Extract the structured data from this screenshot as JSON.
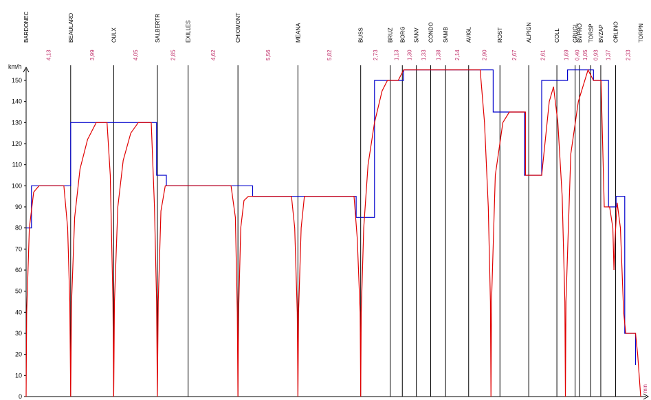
{
  "chart_data": {
    "type": "line",
    "ylabel": "km/h",
    "xlabel": "min",
    "ylim": [
      0,
      155
    ],
    "yticks": [
      0,
      10,
      20,
      30,
      40,
      50,
      60,
      70,
      80,
      90,
      100,
      110,
      120,
      130,
      140,
      150
    ],
    "stations": [
      {
        "name": "BARDONEC",
        "km": 0
      },
      {
        "name": "BEAULARD",
        "km": 4.13
      },
      {
        "name": "OULX",
        "km": 8.12
      },
      {
        "name": "SALBERTR",
        "km": 12.17
      },
      {
        "name": "EXILLES",
        "km": 15.02
      },
      {
        "name": "CHIOMONT",
        "km": 19.64
      },
      {
        "name": "MEANA",
        "km": 25.2
      },
      {
        "name": "BUSS",
        "km": 31.02
      },
      {
        "name": "BRUZ",
        "km": 33.75
      },
      {
        "name": "BORG",
        "km": 34.88
      },
      {
        "name": "SANV",
        "km": 36.18
      },
      {
        "name": "CONDO",
        "km": 37.51
      },
      {
        "name": "SAMB",
        "km": 38.89
      },
      {
        "name": "AVIGL",
        "km": 41.03
      },
      {
        "name": "ROST",
        "km": 43.93
      },
      {
        "name": "ALPIGN",
        "km": 46.6
      },
      {
        "name": "COLL",
        "km": 49.21
      },
      {
        "name": "GRUGL",
        "km": 50.9
      },
      {
        "name": "BVPRO",
        "km": 51.3
      },
      {
        "name": "TORSP",
        "km": 52.35
      },
      {
        "name": "BVZAP",
        "km": 53.28
      },
      {
        "name": "ORLINO",
        "km": 54.65
      },
      {
        "name": "TORPN",
        "km": 56.98
      }
    ],
    "segment_labels": [
      "4,13",
      "3,99",
      "4,05",
      "2,85",
      "4,62",
      "5,56",
      "5,82",
      "2,73",
      "1,13",
      "1,30",
      "1,33",
      "1,38",
      "2,14",
      "2,90",
      "2,67",
      "2,61",
      "1,69",
      "0,40",
      "1,05",
      "0,93",
      "1,37",
      "2,33"
    ],
    "series": [
      {
        "name": "",
        "color": "#0000cc",
        "points": [
          [
            0,
            80
          ],
          [
            0.5,
            80
          ],
          [
            0.5,
            100
          ],
          [
            4.13,
            100
          ],
          [
            4.13,
            130
          ],
          [
            12.1,
            130
          ],
          [
            12.1,
            105
          ],
          [
            13,
            105
          ],
          [
            13,
            100
          ],
          [
            21,
            100
          ],
          [
            21,
            95
          ],
          [
            30.6,
            95
          ],
          [
            30.6,
            85
          ],
          [
            32.3,
            85
          ],
          [
            32.3,
            150
          ],
          [
            35,
            150
          ],
          [
            35,
            155
          ],
          [
            43.3,
            155
          ],
          [
            43.3,
            135
          ],
          [
            46.2,
            135
          ],
          [
            46.2,
            105
          ],
          [
            47.8,
            105
          ],
          [
            47.8,
            150
          ],
          [
            50.2,
            150
          ],
          [
            50.2,
            155
          ],
          [
            52.6,
            155
          ],
          [
            52.6,
            150
          ],
          [
            54,
            150
          ],
          [
            54,
            90
          ],
          [
            54.7,
            90
          ],
          [
            54.7,
            95
          ],
          [
            55.5,
            95
          ],
          [
            55.5,
            30
          ],
          [
            56.5,
            30
          ],
          [
            56.5,
            15
          ]
        ]
      },
      {
        "name": "",
        "color": "#e00000",
        "points": [
          [
            0,
            0
          ],
          [
            0.05,
            40
          ],
          [
            0.3,
            80
          ],
          [
            0.7,
            97
          ],
          [
            1.2,
            100
          ],
          [
            3.5,
            100
          ],
          [
            3.85,
            80
          ],
          [
            4.05,
            45
          ],
          [
            4.13,
            0
          ],
          [
            4.21,
            45
          ],
          [
            4.5,
            85
          ],
          [
            5,
            108
          ],
          [
            5.7,
            122
          ],
          [
            6.5,
            130
          ],
          [
            7.5,
            130
          ],
          [
            7.8,
            105
          ],
          [
            8.05,
            45
          ],
          [
            8.12,
            0
          ],
          [
            8.19,
            45
          ],
          [
            8.5,
            90
          ],
          [
            9,
            112
          ],
          [
            9.7,
            125
          ],
          [
            10.4,
            130
          ],
          [
            11.6,
            130
          ],
          [
            11.9,
            90
          ],
          [
            12.1,
            45
          ],
          [
            12.17,
            0
          ],
          [
            12.25,
            45
          ],
          [
            12.5,
            88
          ],
          [
            12.9,
            100
          ],
          [
            19,
            100
          ],
          [
            19.4,
            85
          ],
          [
            19.58,
            40
          ],
          [
            19.64,
            0
          ],
          [
            19.7,
            40
          ],
          [
            19.9,
            80
          ],
          [
            20.2,
            93
          ],
          [
            20.6,
            95
          ],
          [
            24.6,
            95
          ],
          [
            24.9,
            80
          ],
          [
            25.14,
            40
          ],
          [
            25.2,
            0
          ],
          [
            25.26,
            40
          ],
          [
            25.5,
            80
          ],
          [
            25.8,
            95
          ],
          [
            30.4,
            95
          ],
          [
            30.7,
            75
          ],
          [
            30.97,
            40
          ],
          [
            31.02,
            0
          ],
          [
            31.07,
            40
          ],
          [
            31.3,
            80
          ],
          [
            31.7,
            110
          ],
          [
            32.3,
            130
          ],
          [
            33,
            145
          ],
          [
            33.5,
            150
          ],
          [
            34.5,
            150
          ],
          [
            35,
            155
          ],
          [
            42.1,
            155
          ],
          [
            42.5,
            130
          ],
          [
            42.85,
            90
          ],
          [
            43.05,
            45
          ],
          [
            43.1,
            0
          ],
          [
            43.15,
            45
          ],
          [
            43.5,
            105
          ],
          [
            44.2,
            130
          ],
          [
            44.8,
            135
          ],
          [
            46.3,
            135
          ],
          [
            46.3,
            105
          ],
          [
            47.8,
            105
          ],
          [
            48.5,
            140
          ],
          [
            48.9,
            147
          ],
          [
            49.3,
            130
          ],
          [
            49.7,
            95
          ],
          [
            49.95,
            45
          ],
          [
            50,
            0
          ],
          [
            50.05,
            45
          ],
          [
            50.5,
            115
          ],
          [
            51.2,
            140
          ],
          [
            52.1,
            155
          ],
          [
            52.6,
            150
          ],
          [
            53.3,
            150
          ],
          [
            53.6,
            90
          ],
          [
            54.1,
            90
          ],
          [
            54.4,
            80
          ],
          [
            54.5,
            60
          ],
          [
            54.6,
            75
          ],
          [
            54.8,
            92
          ],
          [
            55.1,
            80
          ],
          [
            55.4,
            40
          ],
          [
            55.6,
            30
          ],
          [
            56.5,
            30
          ],
          [
            56.7,
            20
          ],
          [
            56.98,
            0
          ]
        ]
      }
    ]
  }
}
